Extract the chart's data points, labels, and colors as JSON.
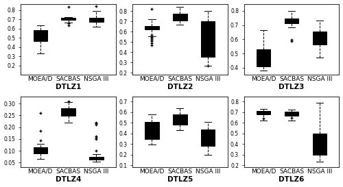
{
  "subplots": [
    {
      "label": "DTLZ1",
      "ylim": [
        0.1,
        0.87
      ],
      "yticks": [
        0.2,
        0.3,
        0.4,
        0.5,
        0.6,
        0.7,
        0.8
      ],
      "groups": [
        {
          "name": "MOEA/D",
          "whislo": 0.33,
          "q1": 0.465,
          "med": 0.52,
          "q3": 0.585,
          "whishi": 0.64,
          "fliers": []
        },
        {
          "name": "SACBAS",
          "whislo": 0.665,
          "q1": 0.693,
          "med": 0.7,
          "q3": 0.715,
          "whishi": 0.725,
          "fliers": [
            0.638,
            0.66,
            0.84
          ]
        },
        {
          "name": "NSGA III",
          "whislo": 0.62,
          "q1": 0.672,
          "med": 0.692,
          "q3": 0.72,
          "whishi": 0.79,
          "fliers": [
            0.845
          ]
        }
      ]
    },
    {
      "label": "DTLZ2",
      "ylim": [
        0.18,
        0.87
      ],
      "yticks": [
        0.2,
        0.3,
        0.4,
        0.5,
        0.6,
        0.7,
        0.8
      ],
      "groups": [
        {
          "name": "MOEA/D",
          "whislo": 0.555,
          "q1": 0.62,
          "med": 0.64,
          "q3": 0.655,
          "whishi": 0.72,
          "fliers": [
            0.465,
            0.49,
            0.505,
            0.52,
            0.535,
            0.55,
            0.57,
            0.82
          ]
        },
        {
          "name": "SACBAS",
          "whislo": 0.67,
          "q1": 0.71,
          "med": 0.74,
          "q3": 0.775,
          "whishi": 0.84,
          "fliers": []
        },
        {
          "name": "NSGA III",
          "whislo": 0.265,
          "q1": 0.355,
          "med": 0.45,
          "q3": 0.7,
          "whishi": 0.8,
          "fliers": [
            0.27
          ]
        }
      ]
    },
    {
      "label": "DTLZ3",
      "ylim": [
        0.35,
        0.85
      ],
      "yticks": [
        0.4,
        0.5,
        0.6,
        0.7,
        0.8
      ],
      "groups": [
        {
          "name": "MOEA/D",
          "whislo": 0.38,
          "q1": 0.41,
          "med": 0.44,
          "q3": 0.53,
          "whishi": 0.665,
          "fliers": []
        },
        {
          "name": "SACBAS",
          "whislo": 0.685,
          "q1": 0.715,
          "med": 0.73,
          "q3": 0.748,
          "whishi": 0.8,
          "fliers": [
            0.585,
            0.595
          ]
        },
        {
          "name": "NSGA III",
          "whislo": 0.47,
          "q1": 0.565,
          "med": 0.605,
          "q3": 0.655,
          "whishi": 0.73,
          "fliers": []
        }
      ]
    },
    {
      "label": "DTLZ4",
      "ylim": [
        0.03,
        0.33
      ],
      "yticks": [
        0.05,
        0.1,
        0.15,
        0.2,
        0.25,
        0.3
      ],
      "groups": [
        {
          "name": "MOEA/D",
          "whislo": 0.065,
          "q1": 0.09,
          "med": 0.1,
          "q3": 0.115,
          "whishi": 0.13,
          "fliers": [
            0.145,
            0.185,
            0.26
          ]
        },
        {
          "name": "SACBAS",
          "whislo": 0.22,
          "q1": 0.248,
          "med": 0.265,
          "q3": 0.28,
          "whishi": 0.305,
          "fliers": [
            0.31
          ]
        },
        {
          "name": "NSGA III",
          "whislo": 0.055,
          "q1": 0.062,
          "med": 0.068,
          "q3": 0.075,
          "whishi": 0.085,
          "fliers": [
            0.1,
            0.15,
            0.155,
            0.16,
            0.21,
            0.215,
            0.22
          ]
        }
      ]
    },
    {
      "label": "DTLZ5",
      "ylim": [
        0.08,
        0.75
      ],
      "yticks": [
        0.1,
        0.2,
        0.3,
        0.4,
        0.5,
        0.6,
        0.7
      ],
      "groups": [
        {
          "name": "MOEA/D",
          "whislo": 0.295,
          "q1": 0.35,
          "med": 0.38,
          "q3": 0.51,
          "whishi": 0.58,
          "fliers": []
        },
        {
          "name": "SACBAS",
          "whislo": 0.43,
          "q1": 0.48,
          "med": 0.53,
          "q3": 0.58,
          "whishi": 0.64,
          "fliers": []
        },
        {
          "name": "NSGA III",
          "whislo": 0.2,
          "q1": 0.28,
          "med": 0.31,
          "q3": 0.44,
          "whishi": 0.51,
          "fliers": []
        }
      ]
    },
    {
      "label": "DTLZ6",
      "ylim": [
        0.18,
        0.85
      ],
      "yticks": [
        0.2,
        0.3,
        0.4,
        0.5,
        0.6,
        0.7,
        0.8
      ],
      "groups": [
        {
          "name": "MOEA/D",
          "whislo": 0.62,
          "q1": 0.678,
          "med": 0.7,
          "q3": 0.715,
          "whishi": 0.73,
          "fliers": [
            0.64
          ]
        },
        {
          "name": "SACBAS",
          "whislo": 0.62,
          "q1": 0.668,
          "med": 0.69,
          "q3": 0.705,
          "whishi": 0.725,
          "fliers": [
            0.645
          ]
        },
        {
          "name": "NSGA III",
          "whislo": 0.235,
          "q1": 0.3,
          "med": 0.355,
          "q3": 0.5,
          "whishi": 0.79,
          "fliers": []
        }
      ]
    }
  ],
  "box_facecolor": "#ffffff",
  "box_edgecolor": "#000000",
  "median_color": "#000000",
  "whisker_color": "#000000",
  "flier_color": "#000000",
  "label_fontsize": 6.5,
  "xlabel_fontsize": 7.5,
  "tick_fontsize": 5.5,
  "linewidth": 0.7
}
